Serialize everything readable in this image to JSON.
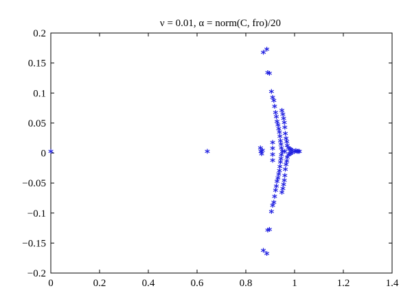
{
  "chart_data": {
    "type": "scatter",
    "title": "ν = 0.01, α = norm(C, fro)/20",
    "xlabel": "",
    "ylabel": "",
    "xlim": [
      0,
      1.4
    ],
    "ylim": [
      -0.2,
      0.2
    ],
    "x_ticks": [
      0,
      0.2,
      0.4,
      0.6,
      0.8,
      1,
      1.2,
      1.4
    ],
    "x_tick_labels": [
      "0",
      "0.2",
      "0.4",
      "0.6",
      "0.8",
      "1",
      "1.2",
      "1.4"
    ],
    "y_ticks": [
      0.2,
      0.15,
      0.1,
      0.05,
      0,
      -0.05,
      -0.1,
      -0.15,
      -0.2
    ],
    "y_tick_labels": [
      "0.2",
      "0.15",
      "0.1",
      "0.05",
      "0",
      "−0.05",
      "−0.1",
      "−0.15",
      "−0.2"
    ],
    "grid": false,
    "marker": "*",
    "marker_color": "#1f1fe0",
    "series": [
      {
        "points": [
          [
            0.0,
            0.0
          ],
          [
            0.642,
            0.0
          ],
          [
            0.86,
            0.006
          ],
          [
            0.862,
            0.0
          ],
          [
            0.865,
            -0.004
          ],
          [
            0.868,
            0.002
          ],
          [
            0.872,
            0.165
          ],
          [
            0.886,
            0.17
          ],
          [
            0.872,
            -0.165
          ],
          [
            0.886,
            -0.17
          ],
          [
            0.89,
            0.131
          ],
          [
            0.897,
            0.13
          ],
          [
            0.89,
            -0.131
          ],
          [
            0.897,
            -0.13
          ],
          [
            0.905,
            0.1
          ],
          [
            0.91,
            0.09
          ],
          [
            0.905,
            -0.1
          ],
          [
            0.91,
            -0.09
          ],
          [
            0.915,
            0.085
          ],
          [
            0.915,
            -0.085
          ],
          [
            0.91,
            0.015
          ],
          [
            0.91,
            -0.015
          ],
          [
            0.91,
            0.005
          ],
          [
            0.91,
            -0.005
          ],
          [
            0.918,
            0.075
          ],
          [
            0.918,
            -0.075
          ],
          [
            0.922,
            0.065
          ],
          [
            0.922,
            -0.065
          ],
          [
            0.925,
            0.058
          ],
          [
            0.925,
            -0.058
          ],
          [
            0.928,
            0.05
          ],
          [
            0.928,
            -0.05
          ],
          [
            0.932,
            0.044
          ],
          [
            0.932,
            -0.044
          ],
          [
            0.935,
            0.038
          ],
          [
            0.935,
            -0.038
          ],
          [
            0.938,
            0.032
          ],
          [
            0.938,
            -0.032
          ],
          [
            0.94,
            0.025
          ],
          [
            0.94,
            -0.025
          ],
          [
            0.942,
            0.018
          ],
          [
            0.942,
            -0.018
          ],
          [
            0.944,
            0.012
          ],
          [
            0.944,
            -0.012
          ],
          [
            0.946,
            0.006
          ],
          [
            0.946,
            -0.006
          ],
          [
            0.948,
            0.068
          ],
          [
            0.948,
            -0.068
          ],
          [
            0.952,
            0.062
          ],
          [
            0.952,
            -0.062
          ],
          [
            0.955,
            0.055
          ],
          [
            0.955,
            -0.055
          ],
          [
            0.958,
            0.048
          ],
          [
            0.958,
            -0.048
          ],
          [
            0.96,
            0.04
          ],
          [
            0.96,
            -0.04
          ],
          [
            0.962,
            0.03
          ],
          [
            0.962,
            -0.03
          ],
          [
            0.965,
            0.022
          ],
          [
            0.965,
            -0.022
          ],
          [
            0.968,
            0.016
          ],
          [
            0.968,
            -0.016
          ],
          [
            0.97,
            0.01
          ],
          [
            0.97,
            -0.01
          ],
          [
            0.975,
            0.006
          ],
          [
            0.975,
            -0.006
          ],
          [
            0.98,
            0.004
          ],
          [
            0.98,
            -0.004
          ],
          [
            0.985,
            0.003
          ],
          [
            0.985,
            -0.003
          ],
          [
            0.99,
            0.002
          ],
          [
            0.99,
            -0.002
          ],
          [
            1.0,
            0.0
          ],
          [
            1.005,
            0.001
          ],
          [
            1.01,
            0.0
          ],
          [
            1.015,
            0.0
          ],
          [
            1.02,
            0.0
          ],
          [
            0.95,
            0.0
          ],
          [
            0.96,
            0.0
          ]
        ]
      }
    ]
  }
}
